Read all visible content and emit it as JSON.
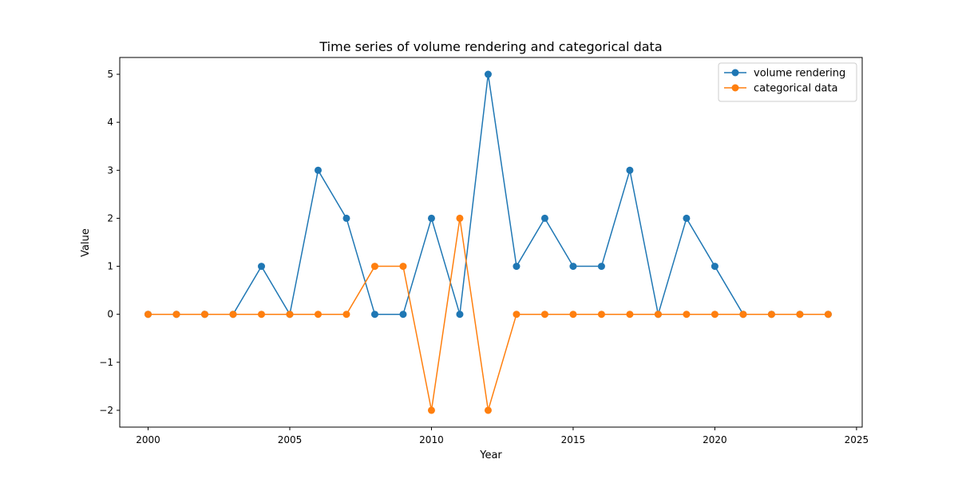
{
  "chart_data": {
    "type": "line",
    "title": "Time series of volume rendering and categorical data",
    "xlabel": "Year",
    "ylabel": "Value",
    "xlim": [
      1999.0,
      2025.2
    ],
    "ylim": [
      -2.35,
      5.35
    ],
    "xticks": [
      2000,
      2005,
      2010,
      2015,
      2020,
      2025
    ],
    "xtick_labels": [
      "2000",
      "2005",
      "2010",
      "2015",
      "2020",
      "2025"
    ],
    "yticks": [
      -2,
      -1,
      0,
      1,
      2,
      3,
      4,
      5
    ],
    "ytick_labels": [
      "−2",
      "−1",
      "0",
      "1",
      "2",
      "3",
      "4",
      "5"
    ],
    "grid": false,
    "legend": "top-right",
    "x": [
      2000,
      2001,
      2002,
      2003,
      2004,
      2005,
      2006,
      2007,
      2008,
      2009,
      2010,
      2011,
      2012,
      2013,
      2014,
      2015,
      2016,
      2017,
      2018,
      2019,
      2020,
      2021,
      2022,
      2023,
      2024
    ],
    "series": [
      {
        "name": "volume rendering",
        "color": "#1f77b4",
        "values": [
          0,
          0,
          0,
          0,
          1,
          0,
          3,
          2,
          0,
          0,
          2,
          0,
          5,
          1,
          2,
          1,
          1,
          3,
          0,
          2,
          1,
          0,
          0,
          0,
          0
        ]
      },
      {
        "name": "categorical data",
        "color": "#ff7f0e",
        "values": [
          0,
          0,
          0,
          0,
          0,
          0,
          0,
          0,
          1,
          1,
          -2,
          2,
          -2,
          0,
          0,
          0,
          0,
          0,
          0,
          0,
          0,
          0,
          0,
          0,
          0
        ]
      }
    ]
  }
}
